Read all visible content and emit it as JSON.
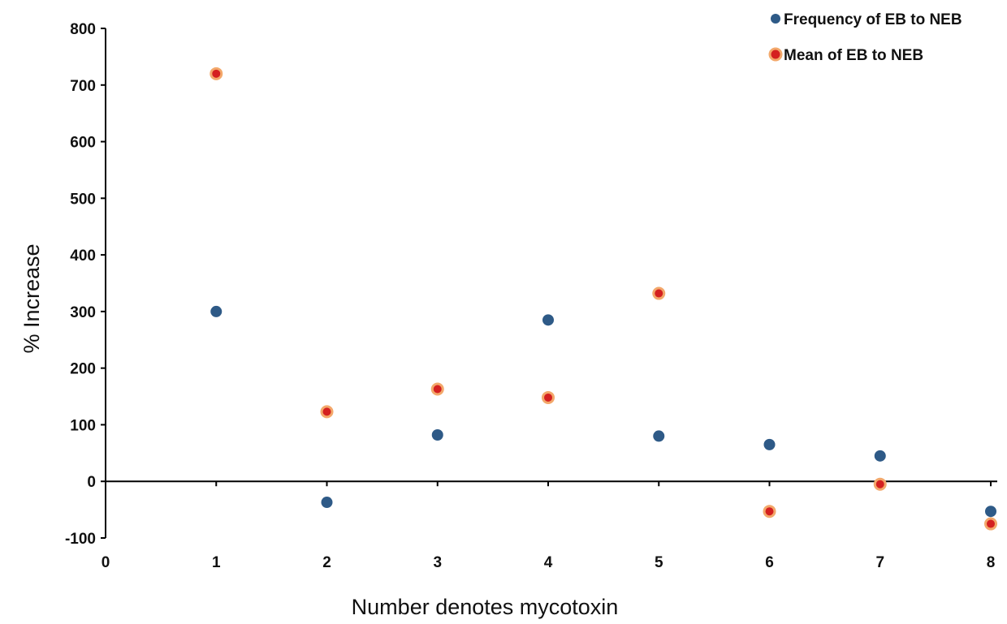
{
  "chart_data": {
    "type": "scatter",
    "title": "",
    "xlabel": "Number denotes mycotoxin",
    "ylabel": "% Increase",
    "xlim": [
      0,
      8
    ],
    "ylim": [
      -100,
      800
    ],
    "x_ticks": [
      "0",
      "1",
      "2",
      "3",
      "4",
      "5",
      "6",
      "7",
      "8"
    ],
    "y_ticks": [
      "-100",
      "0",
      "100",
      "200",
      "300",
      "400",
      "500",
      "600",
      "700",
      "800"
    ],
    "grid": false,
    "legend_position": "top-right",
    "series": [
      {
        "name": "Frequency of EB to NEB",
        "color": "#2e5a87",
        "x": [
          1,
          2,
          3,
          4,
          5,
          6,
          7,
          8
        ],
        "y": [
          300,
          -37,
          82,
          285,
          80,
          65,
          45,
          -53
        ]
      },
      {
        "name": "Mean of EB to NEB",
        "color": "#d42020",
        "edge_color": "#f3a86b",
        "x": [
          1,
          2,
          3,
          4,
          5,
          6,
          7,
          8
        ],
        "y": [
          720,
          123,
          163,
          148,
          332,
          -53,
          -5,
          -75
        ]
      }
    ]
  }
}
